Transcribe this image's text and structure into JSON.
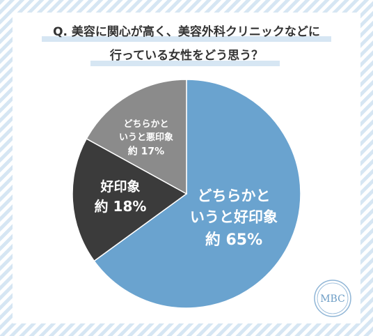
{
  "chart_data": {
    "type": "pie",
    "title": [
      "Q. 美容に関心が高く、美容外科クリニックなどに",
      "行っている女性をどう思う？"
    ],
    "categories": [
      "どちらかと\nいうと好印象",
      "好印象",
      "どちらかと\nいうと悪印象"
    ],
    "values": [
      65,
      18,
      17
    ],
    "value_labels": [
      "約 65%",
      "約 18%",
      "約 17%"
    ],
    "colors": [
      "#6aa3cf",
      "#3b3b3b",
      "#8b8b8b"
    ],
    "logo": "MBC"
  }
}
